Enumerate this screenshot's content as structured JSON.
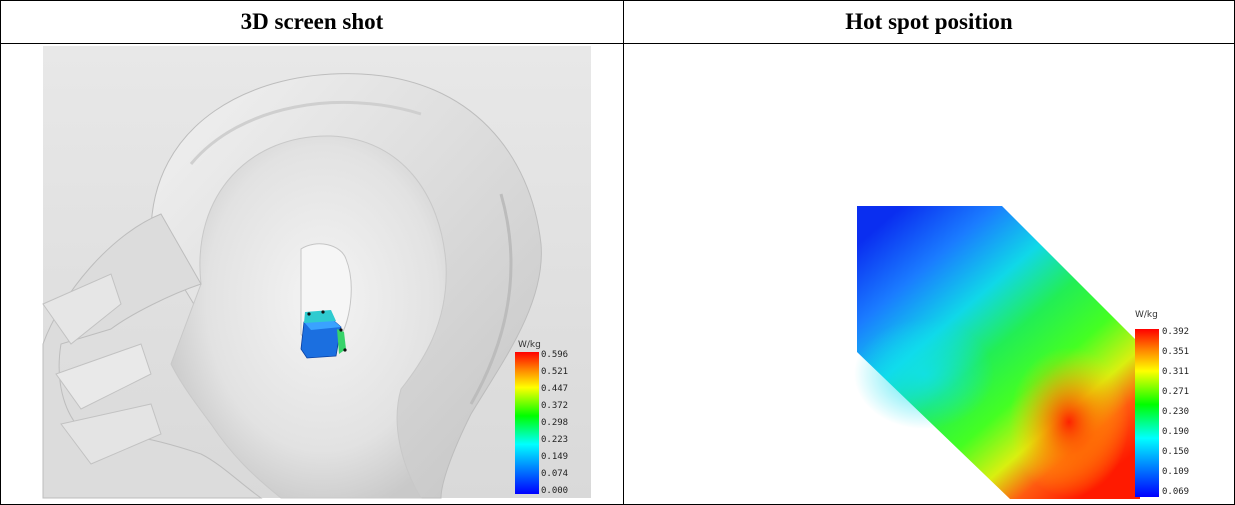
{
  "table": {
    "headers": [
      "3D screen shot",
      "Hot spot position"
    ]
  },
  "left_image": {
    "legend": {
      "unit": "W/kg",
      "ticks": [
        "0.596",
        "0.521",
        "0.447",
        "0.372",
        "0.298",
        "0.223",
        "0.149",
        "0.074",
        "0.000"
      ]
    }
  },
  "right_image": {
    "legend": {
      "unit": "W/kg",
      "ticks": [
        "0.392",
        "0.351",
        "0.311",
        "0.271",
        "0.230",
        "0.190",
        "0.150",
        "0.109",
        "0.069"
      ]
    }
  }
}
